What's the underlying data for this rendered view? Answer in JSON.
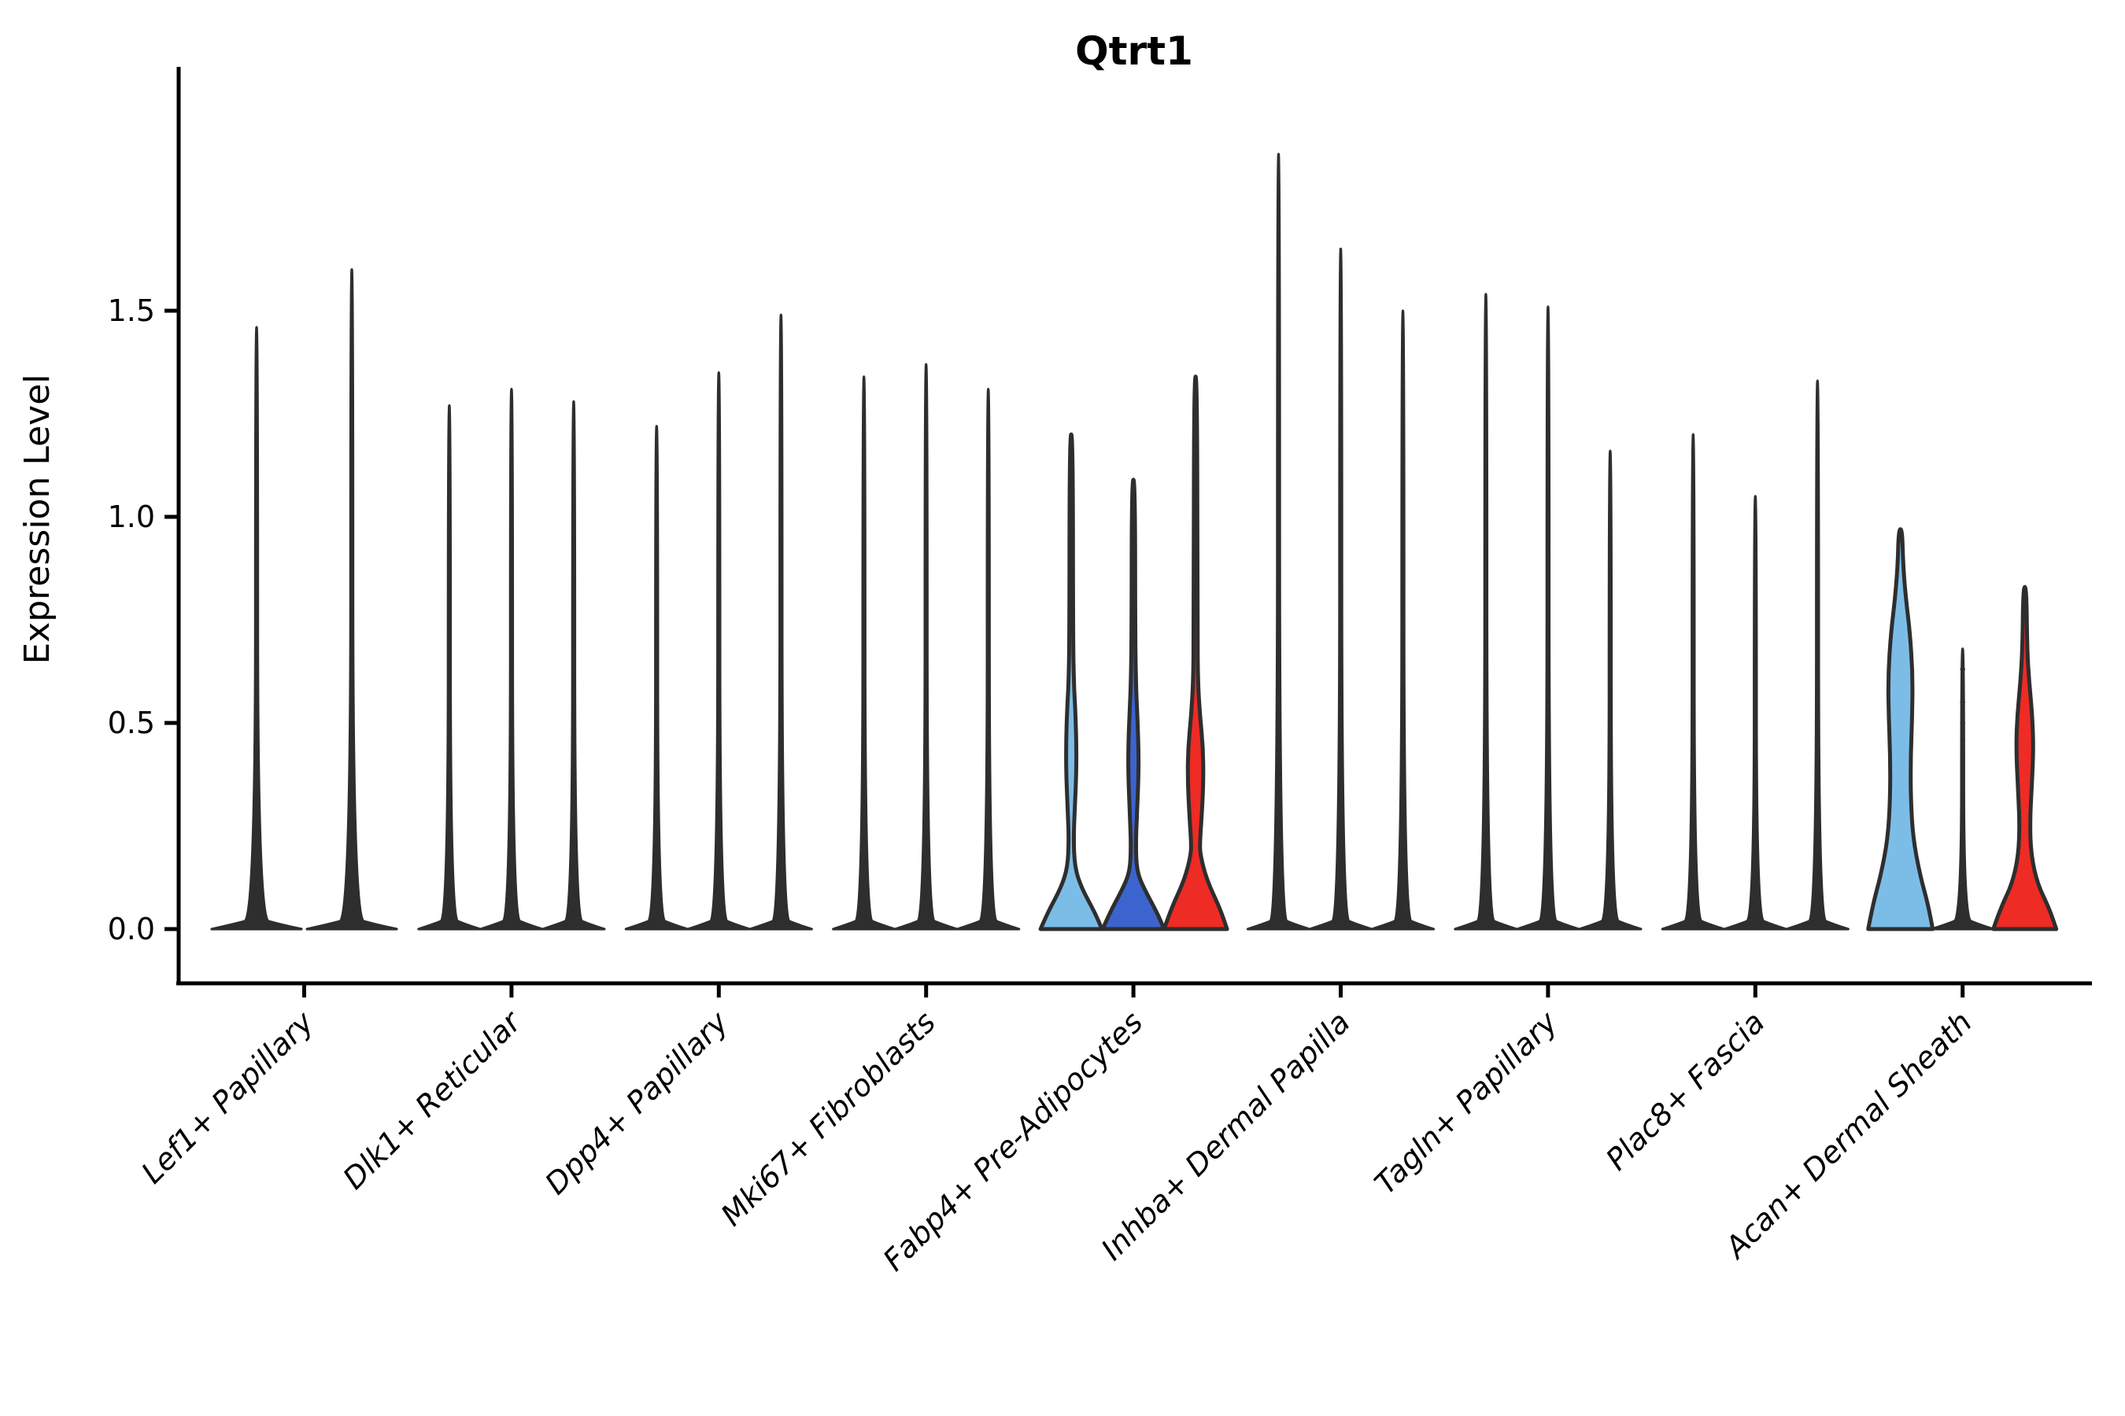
{
  "chart_data": {
    "type": "violin",
    "title": "Qtrt1",
    "xlabel": "",
    "ylabel": "Expression Level",
    "yticks": [
      0.0,
      0.5,
      1.0,
      1.5
    ],
    "ytick_labels": [
      "0.0",
      "0.5",
      "1.0",
      "1.5"
    ],
    "ylim": [
      0,
      2.09
    ],
    "grid": false,
    "legend": "none",
    "style_note": "split violin plot; most violins are degenerate spikes with a flat base at 0",
    "split_colors": {
      "default": "#2e2e2e",
      "light_blue": "#7CBDE8",
      "dark_blue": "#3C64CE",
      "red": "#EE2B24"
    },
    "outline_color": "#2e2e2e",
    "categories": [
      {
        "label": "Lef1+ Papillary",
        "violins": [
          {
            "max": 1.46,
            "color": "default",
            "kind": "spike"
          },
          {
            "max": 1.6,
            "color": "default",
            "kind": "spike"
          }
        ]
      },
      {
        "label": "Dlk1+ Reticular",
        "violins": [
          {
            "max": 1.27,
            "color": "default",
            "kind": "spike"
          },
          {
            "max": 1.31,
            "color": "default",
            "kind": "spike"
          },
          {
            "max": 1.28,
            "color": "default",
            "kind": "spike"
          }
        ]
      },
      {
        "label": "Dpp4+ Papillary",
        "violins": [
          {
            "max": 1.22,
            "color": "default",
            "kind": "spike"
          },
          {
            "max": 1.35,
            "color": "default",
            "kind": "spike"
          },
          {
            "max": 1.49,
            "color": "default",
            "kind": "spike"
          }
        ]
      },
      {
        "label": "Mki67+ Fibroblasts",
        "violins": [
          {
            "max": 1.34,
            "color": "default",
            "kind": "spike"
          },
          {
            "max": 1.37,
            "color": "default",
            "kind": "spike"
          },
          {
            "max": 1.31,
            "color": "default",
            "kind": "spike"
          }
        ]
      },
      {
        "label": "Fabp4+ Pre-Adipocytes",
        "violins": [
          {
            "max": 1.2,
            "color": "light_blue",
            "kind": "violin",
            "profile": [
              [
                0,
                39
              ],
              [
                0.04,
                30
              ],
              [
                0.1,
                13
              ],
              [
                0.15,
                4.5
              ],
              [
                0.22,
                3
              ],
              [
                0.29,
                4.5
              ],
              [
                0.38,
                6.5
              ],
              [
                0.46,
                6.5
              ],
              [
                0.54,
                5
              ],
              [
                0.59,
                3.5
              ],
              [
                0.7,
                2.3
              ],
              [
                1.2,
                2
              ]
            ]
          },
          {
            "max": 1.09,
            "color": "dark_blue",
            "kind": "violin",
            "profile": [
              [
                0,
                39
              ],
              [
                0.04,
                30
              ],
              [
                0.1,
                13
              ],
              [
                0.14,
                4.5
              ],
              [
                0.2,
                3
              ],
              [
                0.28,
                4.5
              ],
              [
                0.37,
                6.5
              ],
              [
                0.44,
                6.5
              ],
              [
                0.52,
                5
              ],
              [
                0.58,
                3.5
              ],
              [
                0.7,
                2.3
              ],
              [
                1.09,
                2
              ]
            ]
          },
          {
            "max": 1.34,
            "color": "red",
            "kind": "violin",
            "profile": [
              [
                0,
                40
              ],
              [
                0.05,
                31
              ],
              [
                0.12,
                14
              ],
              [
                0.18,
                6
              ],
              [
                0.21,
                5.5
              ],
              [
                0.28,
                8
              ],
              [
                0.36,
                10
              ],
              [
                0.44,
                9.5
              ],
              [
                0.52,
                5.5
              ],
              [
                0.6,
                3
              ],
              [
                0.72,
                2.3
              ],
              [
                1.34,
                2
              ]
            ]
          }
        ]
      },
      {
        "label": "Inhba+ Dermal Papilla",
        "violins": [
          {
            "max": 1.88,
            "color": "default",
            "kind": "spike"
          },
          {
            "max": 1.65,
            "color": "default",
            "kind": "spike"
          },
          {
            "max": 1.5,
            "color": "default",
            "kind": "spike"
          }
        ]
      },
      {
        "label": "Tagln+ Papillary",
        "violins": [
          {
            "max": 1.54,
            "color": "default",
            "kind": "spike"
          },
          {
            "max": 1.51,
            "color": "default",
            "kind": "spike"
          },
          {
            "max": 1.16,
            "color": "default",
            "kind": "spike"
          }
        ]
      },
      {
        "label": "Plac8+ Fascia",
        "violins": [
          {
            "max": 1.2,
            "color": "default",
            "kind": "spike"
          },
          {
            "max": 1.05,
            "color": "default",
            "kind": "spike"
          },
          {
            "max": 1.33,
            "color": "default",
            "kind": "spike"
          }
        ]
      },
      {
        "label": "Acan+ Dermal Sheath",
        "violins": [
          {
            "max": 0.97,
            "color": "light_blue",
            "kind": "violin",
            "profile": [
              [
                0,
                41
              ],
              [
                0.06,
                35
              ],
              [
                0.13,
                25
              ],
              [
                0.22,
                16
              ],
              [
                0.32,
                13
              ],
              [
                0.42,
                13
              ],
              [
                0.52,
                15
              ],
              [
                0.62,
                15.5
              ],
              [
                0.72,
                12
              ],
              [
                0.8,
                7
              ],
              [
                0.88,
                3.5
              ],
              [
                0.97,
                2.2
              ]
            ]
          },
          {
            "max": 0.68,
            "color": "default",
            "kind": "spike",
            "points": [
              0.63,
              0.55,
              0.5,
              0.46,
              0.41,
              0.37,
              0.32
            ]
          },
          {
            "max": 0.83,
            "color": "red",
            "kind": "violin",
            "profile": [
              [
                0,
                40
              ],
              [
                0.05,
                31
              ],
              [
                0.11,
                16
              ],
              [
                0.18,
                8
              ],
              [
                0.26,
                6.5
              ],
              [
                0.35,
                9
              ],
              [
                0.44,
                11
              ],
              [
                0.52,
                9.5
              ],
              [
                0.6,
                5.5
              ],
              [
                0.68,
                3
              ],
              [
                0.83,
                2
              ]
            ]
          }
        ]
      }
    ]
  }
}
